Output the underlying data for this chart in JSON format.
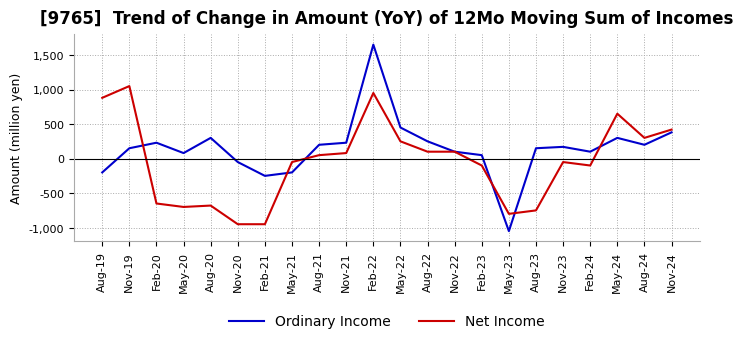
{
  "title": "[9765]  Trend of Change in Amount (YoY) of 12Mo Moving Sum of Incomes",
  "ylabel": "Amount (million yen)",
  "x_labels": [
    "Aug-19",
    "Nov-19",
    "Feb-20",
    "May-20",
    "Aug-20",
    "Nov-20",
    "Feb-21",
    "May-21",
    "Aug-21",
    "Nov-21",
    "Feb-22",
    "May-22",
    "Aug-22",
    "Nov-22",
    "Feb-23",
    "May-23",
    "Aug-23",
    "Nov-23",
    "Feb-24",
    "May-24",
    "Aug-24",
    "Nov-24"
  ],
  "ordinary_income": [
    -200,
    150,
    230,
    80,
    300,
    -50,
    -250,
    -200,
    200,
    230,
    1650,
    450,
    250,
    100,
    50,
    -1050,
    150,
    170,
    100,
    300,
    200,
    380
  ],
  "net_income": [
    880,
    1050,
    -650,
    -700,
    -680,
    -950,
    -950,
    -50,
    50,
    80,
    950,
    250,
    100,
    100,
    -100,
    -800,
    -750,
    -50,
    -100,
    650,
    300,
    420
  ],
  "ordinary_income_color": "#0000cc",
  "net_income_color": "#cc0000",
  "ylim": [
    -1200,
    1800
  ],
  "yticks": [
    -1000,
    -500,
    0,
    500,
    1000,
    1500
  ],
  "background_color": "#ffffff",
  "grid_color": "#aaaaaa",
  "title_fontsize": 12,
  "axis_fontsize": 9,
  "tick_fontsize": 8,
  "legend_fontsize": 10
}
